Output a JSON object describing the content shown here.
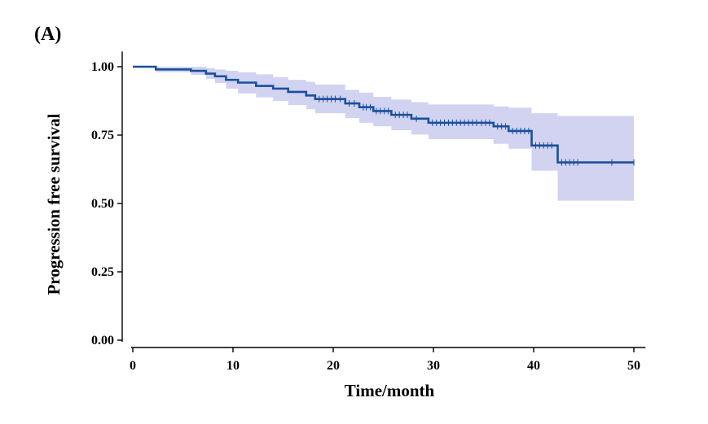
{
  "panel_label": "(A)",
  "colors": {
    "line": "#1a4f9c",
    "ci_band": "#c9cbee",
    "axis": "#000000"
  },
  "chart_data": {
    "type": "line",
    "subtype": "kaplan-meier",
    "xlabel": "Time/month",
    "ylabel": "Progression free survival",
    "xlim": [
      0,
      51
    ],
    "ylim": [
      0,
      1.05
    ],
    "x_ticks": [
      0,
      10,
      20,
      30,
      40,
      50
    ],
    "x_tick_labels": [
      "0",
      "10",
      "20",
      "30",
      "40",
      "50"
    ],
    "y_ticks": [
      0,
      0.25,
      0.5,
      0.75,
      1.0
    ],
    "y_tick_labels": [
      "0.00",
      "0.25",
      "0.50",
      "0.75",
      "1.00"
    ],
    "grid": false,
    "series": [
      {
        "steps": [
          [
            0,
            1.0
          ],
          [
            2.3,
            0.99
          ],
          [
            5.8,
            0.985
          ],
          [
            7.3,
            0.975
          ],
          [
            8.2,
            0.965
          ],
          [
            9.3,
            0.952
          ],
          [
            10.5,
            0.942
          ],
          [
            12.3,
            0.93
          ],
          [
            14.0,
            0.92
          ],
          [
            15.5,
            0.908
          ],
          [
            17.3,
            0.895
          ],
          [
            18.2,
            0.882
          ],
          [
            21.2,
            0.866
          ],
          [
            22.6,
            0.852
          ],
          [
            24.0,
            0.838
          ],
          [
            25.8,
            0.824
          ],
          [
            27.8,
            0.81
          ],
          [
            29.5,
            0.795
          ],
          [
            36.0,
            0.782
          ],
          [
            37.5,
            0.765
          ],
          [
            39.8,
            0.712
          ],
          [
            42.4,
            0.65
          ],
          [
            50.0,
            0.65
          ]
        ],
        "ci_upper": [
          [
            0,
            1.0
          ],
          [
            2.3,
            1.0
          ],
          [
            5.8,
            1.0
          ],
          [
            7.3,
            0.995
          ],
          [
            8.2,
            0.99
          ],
          [
            9.3,
            0.985
          ],
          [
            10.5,
            0.98
          ],
          [
            12.3,
            0.972
          ],
          [
            14.0,
            0.962
          ],
          [
            15.5,
            0.952
          ],
          [
            17.3,
            0.945
          ],
          [
            18.2,
            0.935
          ],
          [
            21.2,
            0.915
          ],
          [
            22.6,
            0.905
          ],
          [
            24.0,
            0.89
          ],
          [
            25.8,
            0.88
          ],
          [
            27.8,
            0.87
          ],
          [
            29.5,
            0.862
          ],
          [
            36.0,
            0.855
          ],
          [
            37.5,
            0.85
          ],
          [
            39.8,
            0.83
          ],
          [
            42.4,
            0.82
          ],
          [
            50.0,
            0.82
          ]
        ],
        "ci_lower": [
          [
            0,
            1.0
          ],
          [
            2.3,
            0.98
          ],
          [
            5.8,
            0.97
          ],
          [
            7.3,
            0.955
          ],
          [
            8.2,
            0.94
          ],
          [
            9.3,
            0.92
          ],
          [
            10.5,
            0.902
          ],
          [
            12.3,
            0.888
          ],
          [
            14.0,
            0.875
          ],
          [
            15.5,
            0.86
          ],
          [
            17.3,
            0.845
          ],
          [
            18.2,
            0.83
          ],
          [
            21.2,
            0.812
          ],
          [
            22.6,
            0.795
          ],
          [
            24.0,
            0.782
          ],
          [
            25.8,
            0.768
          ],
          [
            27.8,
            0.752
          ],
          [
            29.5,
            0.735
          ],
          [
            36.0,
            0.718
          ],
          [
            37.5,
            0.7
          ],
          [
            39.8,
            0.62
          ],
          [
            42.4,
            0.51
          ],
          [
            50.0,
            0.51
          ]
        ],
        "censored_x": [
          18.6,
          19.0,
          19.4,
          19.8,
          20.2,
          20.7,
          21.6,
          22.1,
          23.0,
          23.3,
          23.7,
          24.3,
          24.7,
          25.1,
          25.5,
          26.2,
          26.6,
          27.0,
          27.4,
          28.3,
          29.9,
          30.3,
          30.7,
          31.1,
          31.5,
          31.9,
          32.3,
          32.7,
          33.1,
          33.5,
          33.9,
          34.3,
          34.8,
          35.2,
          35.6,
          36.4,
          36.8,
          37.2,
          37.9,
          38.3,
          38.7,
          39.1,
          39.5,
          40.2,
          40.6,
          41.0,
          41.4,
          41.8,
          42.8,
          43.2,
          43.6,
          44.0,
          44.4,
          47.8,
          50.0
        ]
      }
    ]
  }
}
